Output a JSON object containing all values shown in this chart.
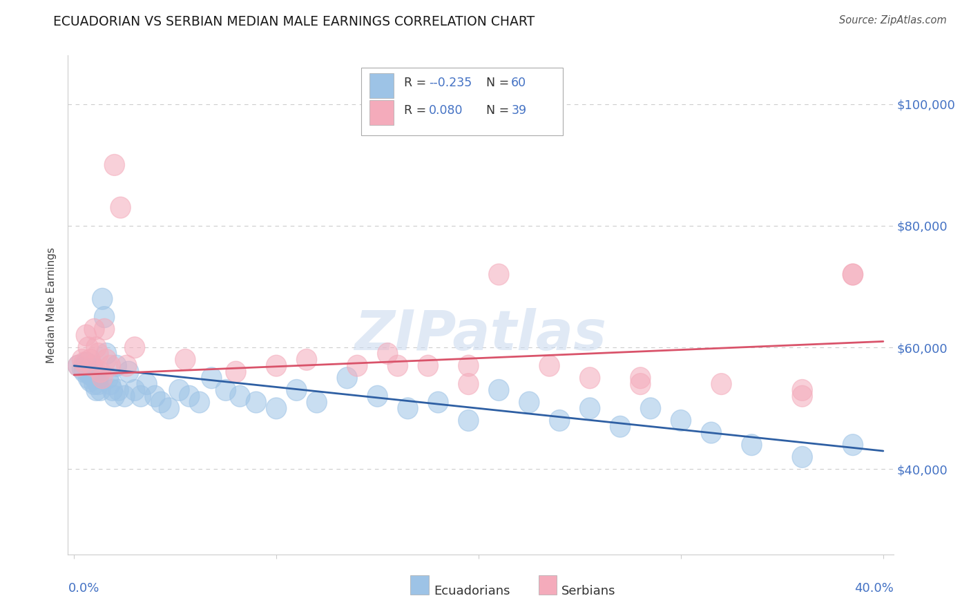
{
  "title": "ECUADORIAN VS SERBIAN MEDIAN MALE EARNINGS CORRELATION CHART",
  "source": "Source: ZipAtlas.com",
  "ylabel": "Median Male Earnings",
  "ytick_values": [
    40000,
    60000,
    80000,
    100000
  ],
  "ylim": [
    26000,
    108000
  ],
  "xlim": [
    -0.003,
    0.405
  ],
  "legend_r_ecuador": "-0.235",
  "legend_n_ecuador": "60",
  "legend_r_serbia": "0.080",
  "legend_n_serbia": "39",
  "ecuador_color": "#9DC3E6",
  "serbia_color": "#F4ABBB",
  "ecuador_line_color": "#2E5FA3",
  "serbia_line_color": "#D9536A",
  "background_color": "#FFFFFF",
  "grid_color": "#CCCCCC",
  "text_color": "#4472C4",
  "watermark": "ZIPatlas",
  "ecuador_x": [
    0.002,
    0.004,
    0.005,
    0.006,
    0.007,
    0.007,
    0.008,
    0.008,
    0.009,
    0.009,
    0.01,
    0.01,
    0.011,
    0.011,
    0.012,
    0.012,
    0.013,
    0.014,
    0.015,
    0.016,
    0.017,
    0.018,
    0.019,
    0.02,
    0.021,
    0.022,
    0.025,
    0.027,
    0.03,
    0.033,
    0.036,
    0.04,
    0.043,
    0.047,
    0.052,
    0.057,
    0.062,
    0.068,
    0.075,
    0.082,
    0.09,
    0.1,
    0.11,
    0.12,
    0.135,
    0.15,
    0.165,
    0.18,
    0.195,
    0.21,
    0.225,
    0.24,
    0.255,
    0.27,
    0.285,
    0.3,
    0.315,
    0.335,
    0.36,
    0.385
  ],
  "ecuador_y": [
    57000,
    56500,
    56000,
    57500,
    55000,
    56000,
    54500,
    55500,
    57000,
    56000,
    55000,
    54000,
    56000,
    53000,
    55000,
    54000,
    53000,
    68000,
    65000,
    59000,
    55000,
    54000,
    53000,
    52000,
    57000,
    53000,
    52000,
    56000,
    53000,
    52000,
    54000,
    52000,
    51000,
    50000,
    53000,
    52000,
    51000,
    55000,
    53000,
    52000,
    51000,
    50000,
    53000,
    51000,
    55000,
    52000,
    50000,
    51000,
    48000,
    53000,
    51000,
    48000,
    50000,
    47000,
    50000,
    48000,
    46000,
    44000,
    42000,
    44000
  ],
  "serbia_x": [
    0.002,
    0.004,
    0.005,
    0.006,
    0.007,
    0.008,
    0.009,
    0.01,
    0.011,
    0.012,
    0.013,
    0.014,
    0.015,
    0.016,
    0.018,
    0.02,
    0.023,
    0.026,
    0.03,
    0.055,
    0.08,
    0.1,
    0.115,
    0.14,
    0.155,
    0.175,
    0.195,
    0.21,
    0.235,
    0.255,
    0.28,
    0.32,
    0.36,
    0.385,
    0.385,
    0.195,
    0.16,
    0.28,
    0.36
  ],
  "serbia_y": [
    57000,
    58000,
    57500,
    62000,
    60000,
    58000,
    57000,
    63000,
    60000,
    59000,
    56000,
    55000,
    63000,
    58000,
    57000,
    90000,
    83000,
    57000,
    60000,
    58000,
    56000,
    57000,
    58000,
    57000,
    59000,
    57000,
    57000,
    72000,
    57000,
    55000,
    55000,
    54000,
    53000,
    72000,
    72000,
    54000,
    57000,
    54000,
    52000
  ]
}
